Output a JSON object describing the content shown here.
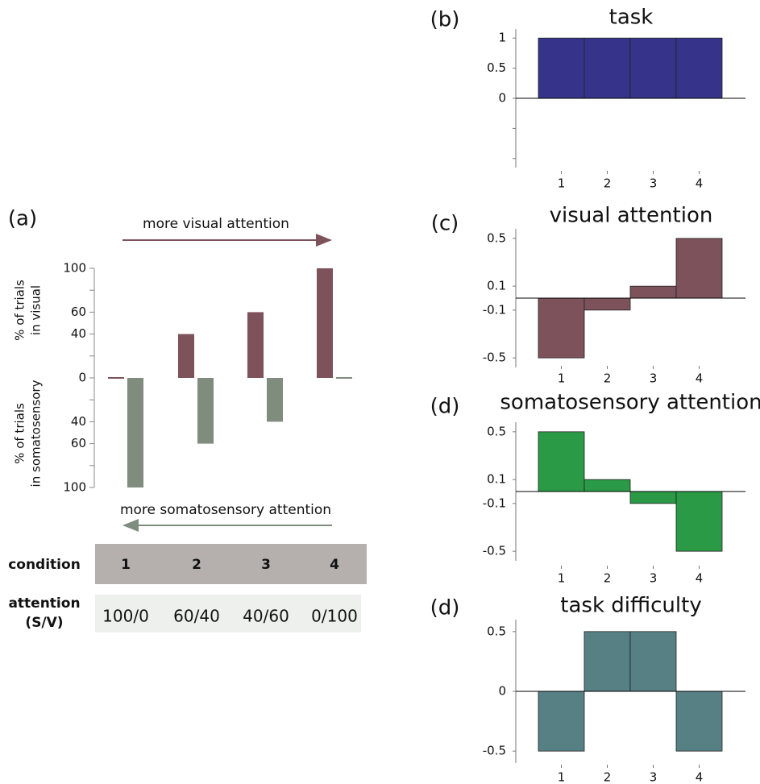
{
  "chart_data": [
    {
      "type": "diverging-bar",
      "label": "(a)",
      "y_label_up": [
        "% of trials",
        "in visual"
      ],
      "y_label_down": [
        "% of trials",
        "in somatosensory"
      ],
      "annotations": [
        {
          "text": "more visual attention",
          "direction": "right",
          "color": "#7d525b"
        },
        {
          "text": "more somatosensory attention",
          "direction": "left",
          "color": "#7f8c7e"
        }
      ],
      "series": [
        {
          "color": "#7d525b",
          "values": [
            0,
            40,
            60,
            100
          ]
        },
        {
          "color": "#7f8c7e",
          "values": [
            -100,
            -60,
            -40,
            0
          ]
        }
      ],
      "ylim": [
        -100,
        100
      ],
      "yticks": [
        100,
        60,
        40,
        0,
        {
          "value": -40,
          "label": "40"
        },
        {
          "value": -60,
          "label": "60"
        },
        {
          "value": -100,
          "label": "100"
        }
      ],
      "minor_yticks": [
        80,
        20,
        -20,
        -80
      ]
    },
    {
      "type": "bar",
      "label": "(b)",
      "title": "task",
      "categories": [
        1,
        2,
        3,
        4
      ],
      "values": [
        1,
        1,
        1,
        1
      ],
      "color": "#35348a",
      "ylim": [
        -1.15,
        1.15
      ],
      "yticks": [
        1,
        0.5,
        0
      ],
      "minor_yticks": [
        -0.5,
        -1
      ]
    },
    {
      "type": "bar",
      "label": "(c)",
      "title": "visual attention",
      "categories": [
        1,
        2,
        3,
        4
      ],
      "values": [
        -0.5,
        -0.1,
        0.1,
        0.5
      ],
      "color": "#7d525b",
      "ylim": [
        -0.58,
        0.58
      ],
      "yticks": [
        0.5,
        0.1,
        -0.1,
        -0.5
      ]
    },
    {
      "type": "bar",
      "label": "(d)",
      "title": "somatosensory attention",
      "categories": [
        1,
        2,
        3,
        4
      ],
      "values": [
        0.5,
        0.1,
        -0.1,
        -0.5
      ],
      "color": "#2a9a46",
      "ylim": [
        -0.58,
        0.58
      ],
      "yticks": [
        0.5,
        0.1,
        -0.1,
        -0.5
      ]
    },
    {
      "type": "bar",
      "label": "(d)",
      "title": "task difficulty",
      "categories": [
        1,
        2,
        3,
        4
      ],
      "values": [
        -0.5,
        0.5,
        0.5,
        -0.5
      ],
      "color": "#568084",
      "ylim": [
        -0.6,
        0.6
      ],
      "yticks": [
        0.5,
        0,
        -0.5
      ]
    }
  ],
  "table": {
    "header": "condition",
    "columns": [
      1,
      2,
      3,
      4
    ],
    "row_label": [
      "attention",
      "(S/V)"
    ],
    "row": [
      "100/0",
      "60/40",
      "40/60",
      "0/100"
    ]
  }
}
